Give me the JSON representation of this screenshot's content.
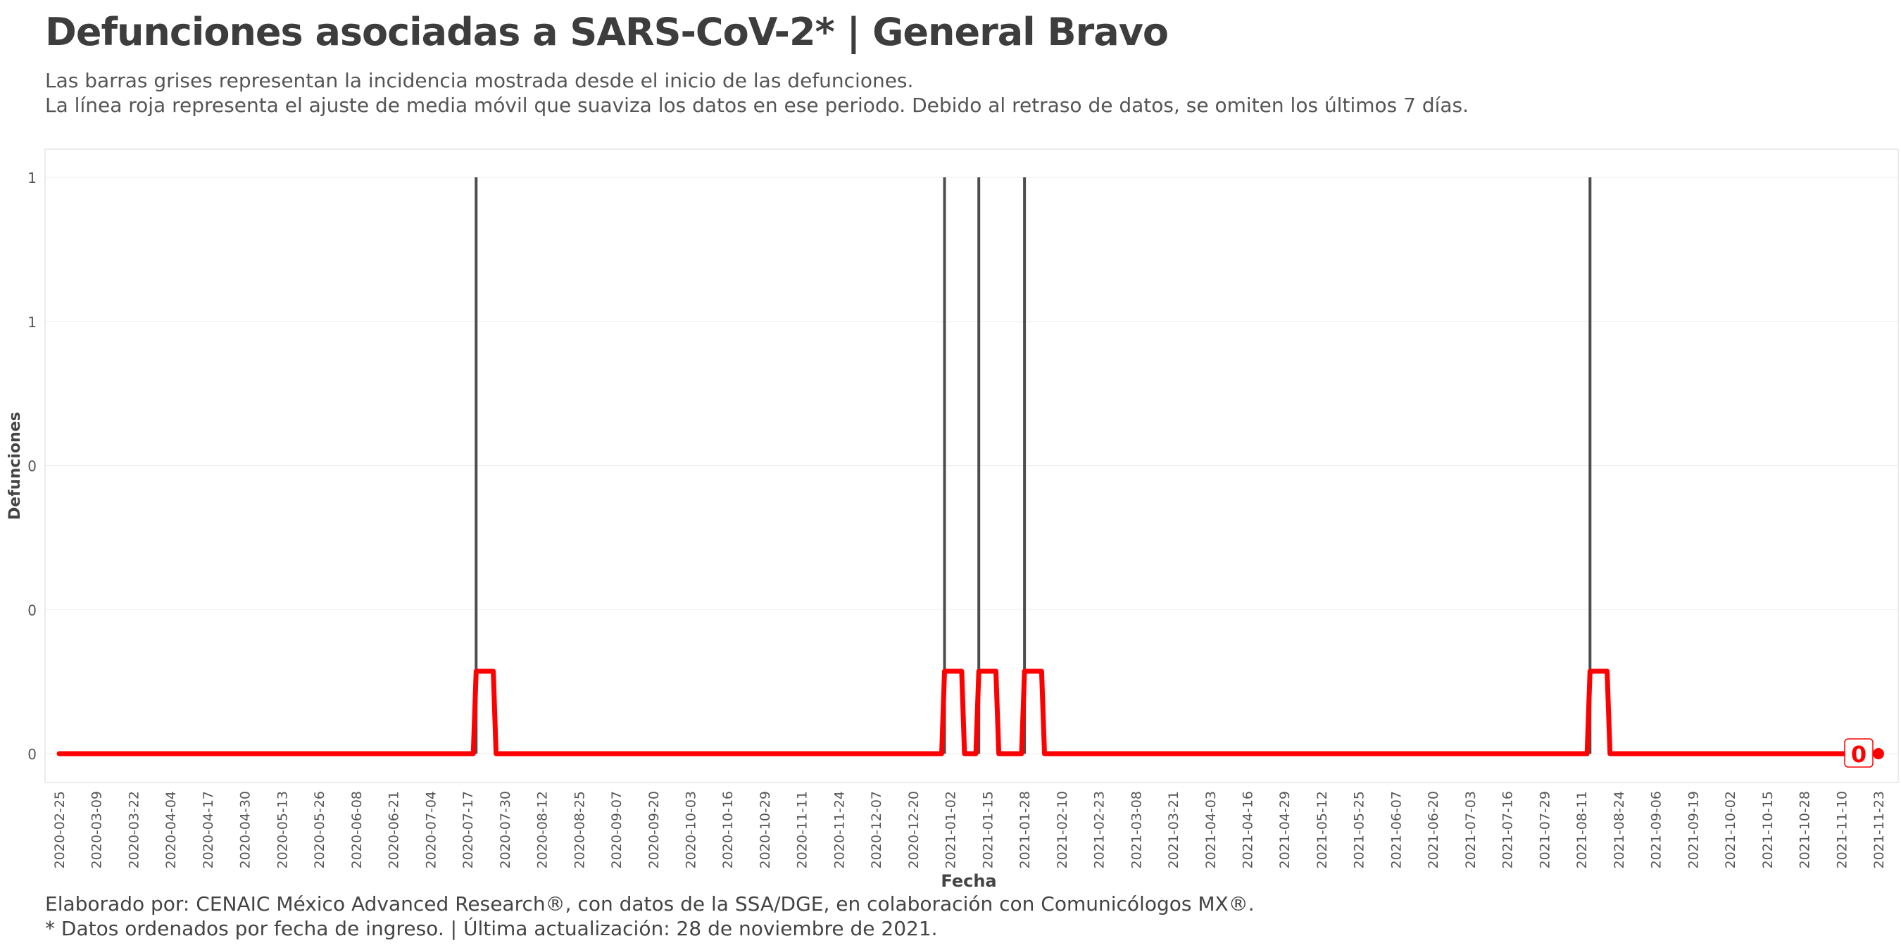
{
  "title": "Defunciones asociadas a SARS-CoV-2* | General Bravo",
  "subtitle_line1": "Las barras grises representan la incidencia mostrada desde el inicio de las defunciones.",
  "subtitle_line2": "La línea roja representa el ajuste de media móvil que suaviza los datos en ese periodo. Debido al retraso de datos, se omiten los últimos 7 días.",
  "caption_line1": "Elaborado por: CENAIC México Advanced Research®, con datos de la SSA/DGE, en colaboración con Comunicólogos MX®.",
  "caption_line2": "* Datos ordenados por fecha de ingreso. | Última actualización: 28 de noviembre de 2021.",
  "colors": {
    "bars": "#4d4d4d",
    "line": "#ff0000",
    "grid": "#eeeeee",
    "panel_border": "#e6e6e6"
  },
  "chart_data": {
    "type": "bar",
    "xlabel": "Fecha",
    "ylabel": "Defunciones",
    "x_range": [
      "2020-02-25",
      "2021-11-23"
    ],
    "ylim": [
      0,
      1
    ],
    "y_ticks": [
      0,
      0.25,
      0.5,
      0.75,
      1
    ],
    "y_tick_labels": [
      "0",
      "0",
      "0",
      "1",
      "1"
    ],
    "x_ticks": [
      "2020-02-25",
      "2020-03-09",
      "2020-03-22",
      "2020-04-04",
      "2020-04-17",
      "2020-04-30",
      "2020-05-13",
      "2020-05-26",
      "2020-06-08",
      "2020-06-21",
      "2020-07-04",
      "2020-07-17",
      "2020-07-30",
      "2020-08-12",
      "2020-08-25",
      "2020-09-07",
      "2020-09-20",
      "2020-10-03",
      "2020-10-16",
      "2020-10-29",
      "2020-11-11",
      "2020-11-24",
      "2020-12-07",
      "2020-12-20",
      "2021-01-02",
      "2021-01-15",
      "2021-01-28",
      "2021-02-10",
      "2021-02-23",
      "2021-03-08",
      "2021-03-21",
      "2021-04-03",
      "2021-04-16",
      "2021-04-29",
      "2021-05-12",
      "2021-05-25",
      "2021-06-07",
      "2021-06-20",
      "2021-07-03",
      "2021-07-16",
      "2021-07-29",
      "2021-08-11",
      "2021-08-24",
      "2021-09-06",
      "2021-09-19",
      "2021-10-02",
      "2021-10-15",
      "2021-10-28",
      "2021-11-10",
      "2021-11-23"
    ],
    "bars": [
      {
        "date": "2020-07-20",
        "value": 1
      },
      {
        "date": "2020-12-31",
        "value": 1
      },
      {
        "date": "2021-01-12",
        "value": 1
      },
      {
        "date": "2021-01-28",
        "value": 1
      },
      {
        "date": "2021-08-14",
        "value": 1
      }
    ],
    "moving_average": {
      "window_days": 7,
      "plateau_value": 0.143,
      "bumps": [
        {
          "from": "2020-07-20",
          "to": "2020-07-26"
        },
        {
          "from": "2020-12-31",
          "to": "2021-01-06"
        },
        {
          "from": "2021-01-12",
          "to": "2021-01-18"
        },
        {
          "from": "2021-01-28",
          "to": "2021-02-03"
        },
        {
          "from": "2021-08-14",
          "to": "2021-08-20"
        }
      ],
      "start": "2020-02-25",
      "end": "2021-11-23"
    },
    "last_value_label": "0",
    "grid": true
  }
}
